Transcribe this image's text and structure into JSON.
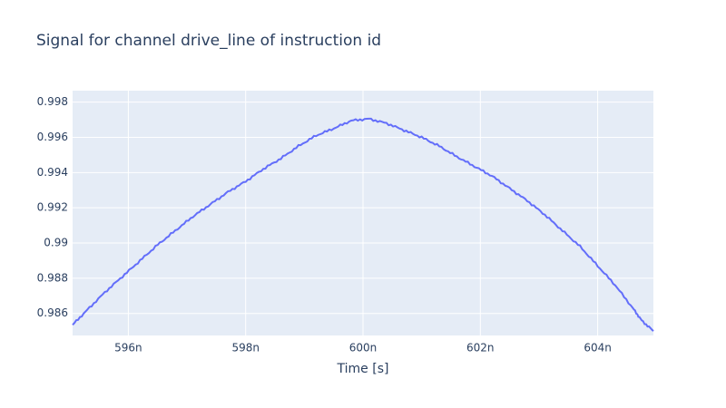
{
  "chart_data": {
    "type": "line",
    "title": "Signal for channel drive_line of instruction id",
    "xlabel": "Time [s]",
    "ylabel": "",
    "xlim": [
      5.9505e-07,
      6.0495e-07
    ],
    "ylim": [
      0.98475,
      0.99865
    ],
    "x_ticks": [
      {
        "value": 5.96e-07,
        "label": "596n"
      },
      {
        "value": 5.98e-07,
        "label": "598n"
      },
      {
        "value": 6e-07,
        "label": "600n"
      },
      {
        "value": 6.02e-07,
        "label": "602n"
      },
      {
        "value": 6.04e-07,
        "label": "604n"
      }
    ],
    "y_ticks": [
      {
        "value": 0.986,
        "label": "0.986"
      },
      {
        "value": 0.988,
        "label": "0.988"
      },
      {
        "value": 0.99,
        "label": "0.99"
      },
      {
        "value": 0.992,
        "label": "0.992"
      },
      {
        "value": 0.994,
        "label": "0.994"
      },
      {
        "value": 0.996,
        "label": "0.996"
      },
      {
        "value": 0.998,
        "label": "0.998"
      }
    ],
    "grid": true,
    "colors": {
      "plot_background": "#e5ecf6",
      "grid": "#ffffff",
      "line": "#636efa",
      "text": "#2a3f5f"
    },
    "series": [
      {
        "name": "",
        "x": [
          5.9505e-07,
          5.953e-07,
          5.956e-07,
          5.959e-07,
          5.962e-07,
          5.965e-07,
          5.968e-07,
          5.971e-07,
          5.974e-07,
          5.977e-07,
          5.98e-07,
          5.983e-07,
          5.986e-07,
          5.989e-07,
          5.992e-07,
          5.995e-07,
          5.998e-07,
          6.001e-07,
          6.004e-07,
          6.007e-07,
          6.01e-07,
          6.013e-07,
          6.016e-07,
          6.019e-07,
          6.022e-07,
          6.025e-07,
          6.028e-07,
          6.031e-07,
          6.034e-07,
          6.037e-07,
          6.04e-07,
          6.043e-07,
          6.046e-07,
          6.0475e-07,
          6.0495e-07
        ],
        "y": [
          0.98535,
          0.9862,
          0.9872,
          0.9881,
          0.989,
          0.9899,
          0.9907,
          0.9915,
          0.9922,
          0.9929,
          0.9935,
          0.9942,
          0.9948,
          0.9955,
          0.9961,
          0.9965,
          0.99695,
          0.99705,
          0.9968,
          0.9964,
          0.996,
          0.9955,
          0.9949,
          0.99435,
          0.9938,
          0.9931,
          0.9924,
          0.9916,
          0.9907,
          0.9898,
          0.9887,
          0.9876,
          0.9863,
          0.9856,
          0.985
        ]
      }
    ]
  }
}
